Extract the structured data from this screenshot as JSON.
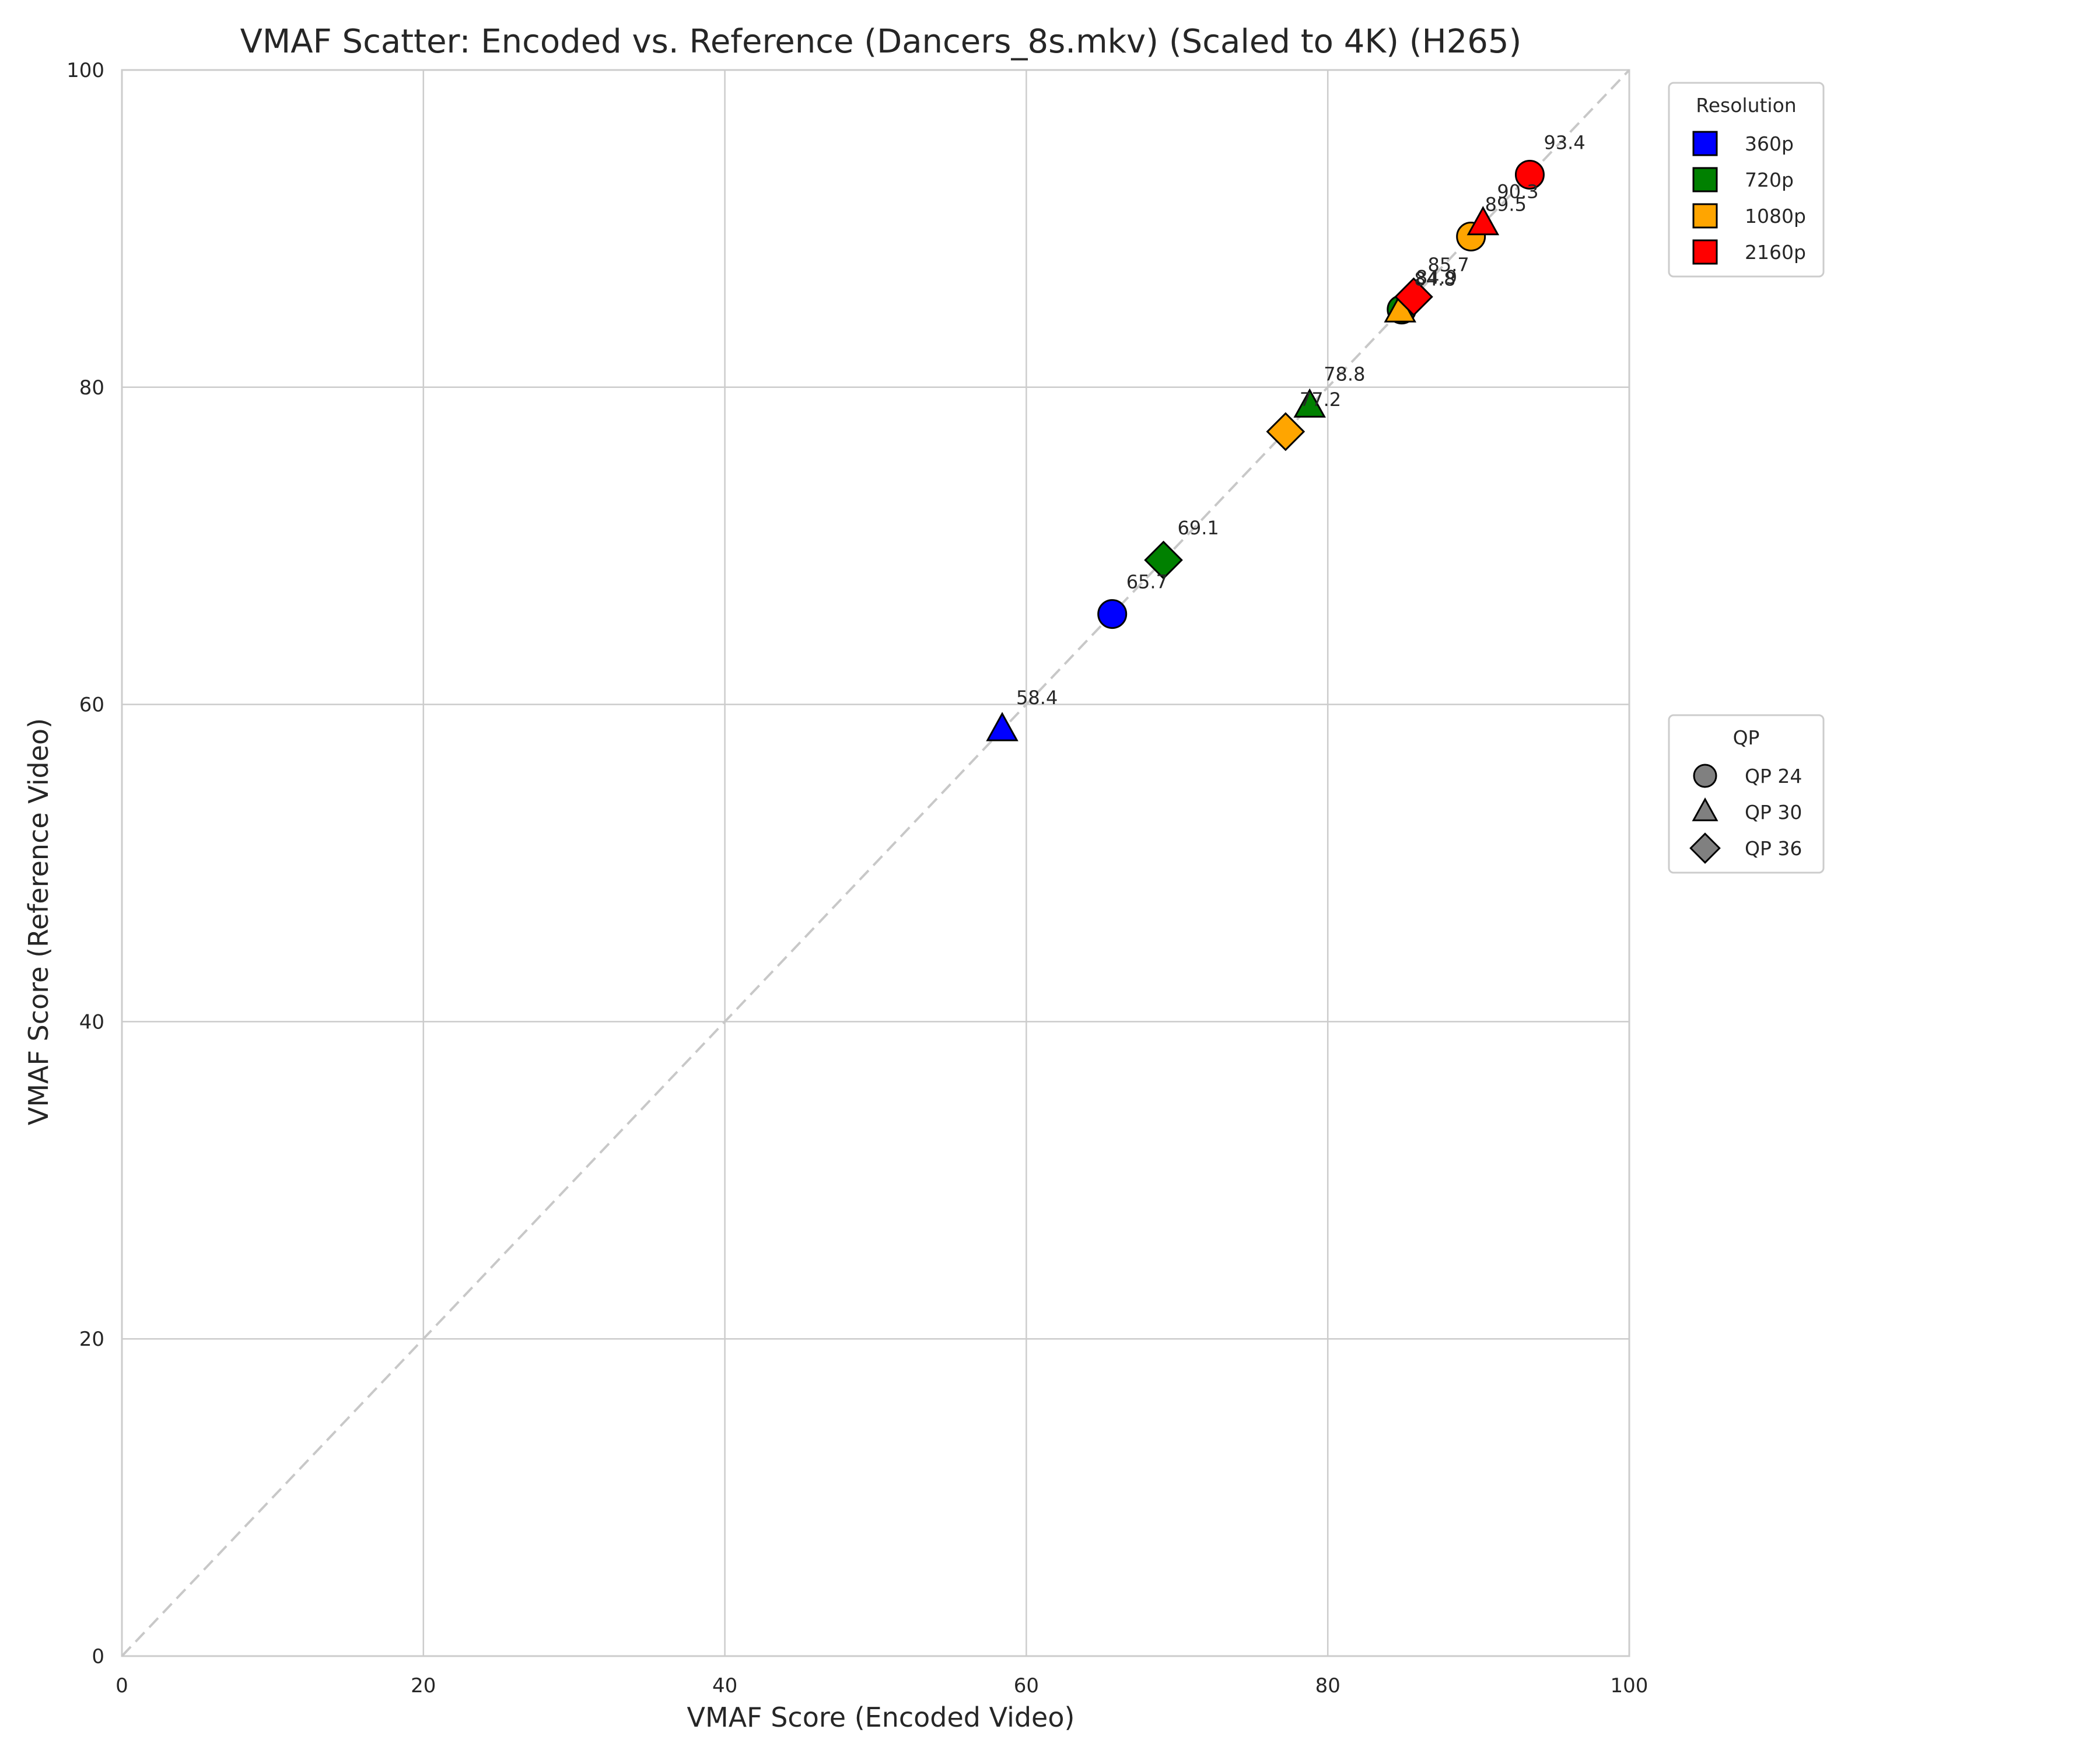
{
  "chart_data": {
    "type": "scatter",
    "title": "VMAF Scatter: Encoded vs. Reference (Dancers_8s.mkv) (Scaled to 4K) (H265)",
    "xlabel": "VMAF Score (Encoded Video)",
    "ylabel": "VMAF Score (Reference Video)",
    "xlim": [
      0,
      100
    ],
    "ylim": [
      0,
      100
    ],
    "xticks": [
      "0",
      "20",
      "40",
      "60",
      "80",
      "100"
    ],
    "yticks": [
      "0",
      "20",
      "40",
      "60",
      "80",
      "100"
    ],
    "grid": true,
    "reference_line": "y = x",
    "points": [
      {
        "x": 65.7,
        "y": 65.7,
        "label": "65.7",
        "resolution": "360p",
        "qp": "QP 24"
      },
      {
        "x": 58.4,
        "y": 58.4,
        "label": "58.4",
        "resolution": "360p",
        "qp": "QP 30"
      },
      {
        "x": 84.9,
        "y": 84.9,
        "label": "84.9",
        "resolution": "720p",
        "qp": "QP 24"
      },
      {
        "x": 78.8,
        "y": 78.8,
        "label": "78.8",
        "resolution": "720p",
        "qp": "QP 30"
      },
      {
        "x": 69.1,
        "y": 69.1,
        "label": "69.1",
        "resolution": "720p",
        "qp": "QP 36"
      },
      {
        "x": 89.5,
        "y": 89.5,
        "label": "89.5",
        "resolution": "1080p",
        "qp": "QP 24"
      },
      {
        "x": 84.8,
        "y": 84.8,
        "label": "84.8",
        "resolution": "1080p",
        "qp": "QP 30"
      },
      {
        "x": 77.2,
        "y": 77.2,
        "label": "77.2",
        "resolution": "1080p",
        "qp": "QP 36"
      },
      {
        "x": 93.4,
        "y": 93.4,
        "label": "93.4",
        "resolution": "2160p",
        "qp": "QP 24"
      },
      {
        "x": 90.3,
        "y": 90.3,
        "label": "90.3",
        "resolution": "2160p",
        "qp": "QP 30"
      },
      {
        "x": 85.7,
        "y": 85.7,
        "label": "85.7",
        "resolution": "2160p",
        "qp": "QP 36"
      }
    ],
    "legend_resolution": {
      "title": "Resolution",
      "placement": "upper-right-outside",
      "entries": [
        {
          "label": "360p",
          "color": "#0000ff"
        },
        {
          "label": "720p",
          "color": "#008000"
        },
        {
          "label": "1080p",
          "color": "#ffa500"
        },
        {
          "label": "2160p",
          "color": "#ff0000"
        }
      ]
    },
    "legend_qp": {
      "title": "QP",
      "placement": "center-right-outside",
      "entries": [
        {
          "label": "QP 24",
          "marker": "circle"
        },
        {
          "label": "QP 30",
          "marker": "triangle"
        },
        {
          "label": "QP 36",
          "marker": "diamond"
        }
      ]
    }
  }
}
